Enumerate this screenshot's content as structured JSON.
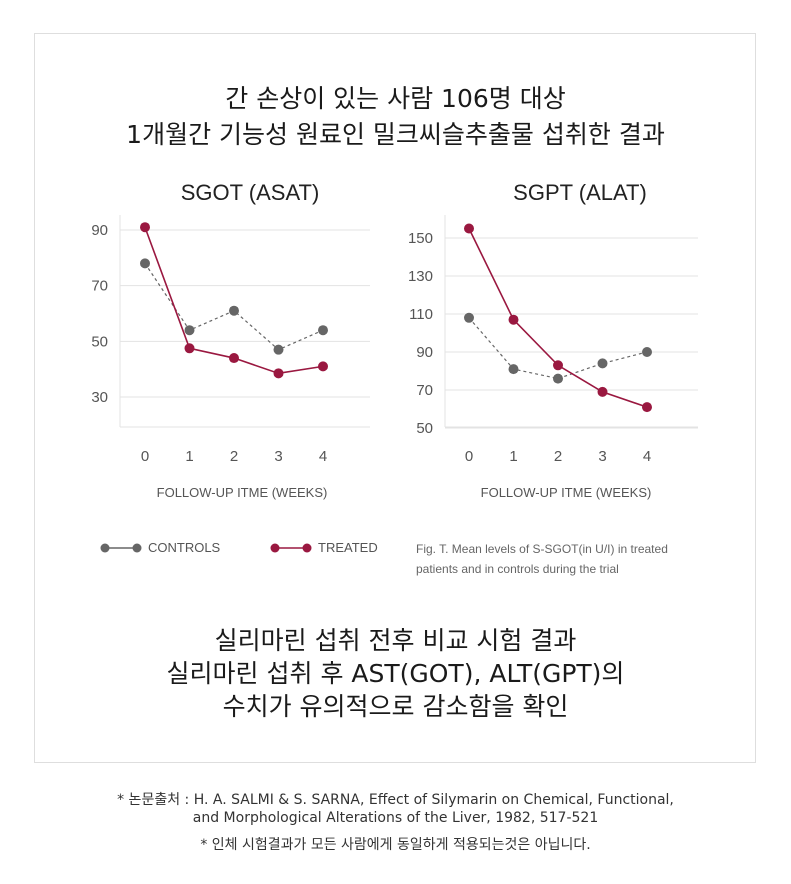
{
  "header": {
    "line1": "간 손상이 있는 사람 106명 대상",
    "line2": "1개월간 기능성 원료인 밀크씨슬추출물 섭취한 결과"
  },
  "colors": {
    "controls": "#666666",
    "treated": "#9a1840",
    "grid": "#e3e3e3"
  },
  "chart_data": [
    {
      "type": "line",
      "title": "SGOT (ASAT)",
      "xlabel": "FOLLOW-UP ITME (WEEKS)",
      "x": [
        0,
        1,
        2,
        3,
        4
      ],
      "xticks": [
        "0",
        "1",
        "2",
        "3",
        "4"
      ],
      "yticks": [
        "90",
        "70",
        "50",
        "30"
      ],
      "ylim": [
        20,
        95
      ],
      "grid": true,
      "series": [
        {
          "name": "CONTROLS",
          "values": [
            78,
            54,
            61,
            47,
            54
          ],
          "style": "dashed"
        },
        {
          "name": "TREATED",
          "values": [
            91,
            47.5,
            44,
            38.5,
            41
          ],
          "style": "solid"
        }
      ]
    },
    {
      "type": "line",
      "title": "SGPT (ALAT)",
      "xlabel": "FOLLOW-UP ITME (WEEKS)",
      "x": [
        0,
        1,
        2,
        3,
        4
      ],
      "xticks": [
        "0",
        "1",
        "2",
        "3",
        "4"
      ],
      "yticks": [
        "150",
        "130",
        "110",
        "90",
        "70",
        "50"
      ],
      "ylim": [
        33,
        160
      ],
      "grid": true,
      "series": [
        {
          "name": "CONTROLS",
          "values": [
            108,
            81,
            76,
            84,
            90
          ],
          "style": "dashed"
        },
        {
          "name": "TREATED",
          "values": [
            155,
            107,
            83,
            69,
            61
          ],
          "style": "solid"
        }
      ]
    }
  ],
  "legend": {
    "controls": "CONTROLS",
    "treated": "TREATED"
  },
  "caption": {
    "line1": "Fig. T. Mean levels of S-SGOT(in U/I) in treated",
    "line2": "patients and in controls during the trial"
  },
  "summary": {
    "line1": "실리마린 섭취 전후 비교 시험 결과",
    "line2": "실리마린 섭취 후 AST(GOT), ALT(GPT)의",
    "line3": "수치가 유의적으로 감소함을 확인"
  },
  "footnote": {
    "line1": "* 논문출처 : H. A. SALMI & S. SARNA, Effect of Silymarin on Chemical, Functional,",
    "line2": "and Morphological Alterations of the Liver, 1982, 517-521",
    "line3": "* 인체 시험결과가 모든 사람에게 동일하게 적용되는것은 아닙니다."
  }
}
